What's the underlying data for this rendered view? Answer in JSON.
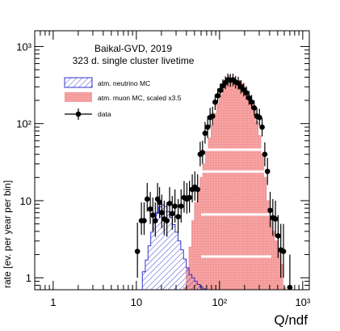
{
  "chart_data": {
    "type": "histogram",
    "annotation": {
      "line1": "Baikal-GVD, 2019",
      "line2": "323 d. single cluster livetime"
    },
    "xlabel": "Q/ndf",
    "ylabel": "rate [ev. per year per bin]",
    "x_scale": "log",
    "y_scale": "log",
    "xlim": [
      0.6,
      1200
    ],
    "ylim": [
      0.7,
      1600
    ],
    "x_ticks": [
      {
        "label": "1",
        "value": 1
      },
      {
        "label": "10",
        "value": 10
      },
      {
        "label": "10²",
        "value": 100
      },
      {
        "label": "10³",
        "value": 1000
      }
    ],
    "y_ticks": [
      {
        "label": "1",
        "value": 1
      },
      {
        "label": "10",
        "value": 10
      },
      {
        "label": "10²",
        "value": 100
      },
      {
        "label": "10³",
        "value": 1000
      }
    ],
    "legend": [
      {
        "label": "atm. neutrino MC",
        "style": "hatched",
        "color": "#3333cc"
      },
      {
        "label": "atm. muon MC, scaled x3.5",
        "style": "filled",
        "color": "#f09999"
      },
      {
        "label": "data",
        "style": "marker",
        "color": "#000000"
      }
    ],
    "series": [
      {
        "name": "atm. neutrino MC",
        "kind": "hist",
        "color": "#3333cc",
        "bins": [
          [
            11.8,
            12.8,
            1.2
          ],
          [
            12.8,
            13.8,
            1.7
          ],
          [
            13.8,
            14.9,
            2.6
          ],
          [
            14.9,
            16.0,
            3.9
          ],
          [
            16.0,
            17.3,
            5.5
          ],
          [
            17.3,
            18.6,
            7.0
          ],
          [
            18.6,
            20.1,
            8.3
          ],
          [
            20.1,
            21.7,
            8.8
          ],
          [
            21.7,
            23.4,
            8.4
          ],
          [
            23.4,
            25.2,
            7.2
          ],
          [
            25.2,
            27.2,
            6.1
          ],
          [
            27.2,
            29.3,
            4.9
          ],
          [
            29.3,
            31.7,
            3.9
          ],
          [
            31.7,
            34.2,
            3.0
          ],
          [
            34.2,
            36.9,
            2.3
          ],
          [
            36.9,
            39.8,
            1.75
          ],
          [
            39.8,
            43,
            1.35
          ],
          [
            43,
            46.4,
            1.1
          ],
          [
            46.4,
            50.0,
            1.0
          ],
          [
            50.0,
            54,
            0.9
          ],
          [
            54,
            58.3,
            0.82
          ],
          [
            58.3,
            63,
            0.76
          ],
          [
            63,
            68,
            0.72
          ]
        ]
      },
      {
        "name": "atm. muon MC, scaled x3.5",
        "kind": "hist",
        "color": "#f09999",
        "bins": [
          [
            36.9,
            39.8,
            0.75
          ],
          [
            39.8,
            43,
            1.35
          ],
          [
            43,
            46.4,
            2.5
          ],
          [
            46.4,
            50.0,
            5.5
          ],
          [
            50.0,
            54,
            9.5
          ],
          [
            54,
            58.3,
            14
          ],
          [
            58.3,
            63,
            20
          ],
          [
            63,
            68,
            30
          ],
          [
            68,
            73.4,
            45
          ],
          [
            73.4,
            79.3,
            65
          ],
          [
            79.3,
            85.5,
            95
          ],
          [
            85.5,
            92.3,
            135
          ],
          [
            92.3,
            99.6,
            180
          ],
          [
            99.6,
            107.5,
            230
          ],
          [
            107.5,
            116,
            280
          ],
          [
            116,
            125.3,
            330
          ],
          [
            125.3,
            135.3,
            420
          ],
          [
            135.3,
            146,
            380
          ],
          [
            146,
            157.6,
            370
          ],
          [
            157.6,
            170,
            350
          ],
          [
            170,
            183.5,
            360
          ],
          [
            183.5,
            198,
            330
          ],
          [
            198,
            213.7,
            290
          ],
          [
            213.7,
            230.7,
            240
          ],
          [
            230.7,
            249,
            190
          ],
          [
            249,
            268.8,
            150
          ],
          [
            268.8,
            290,
            105
          ],
          [
            290,
            313,
            70
          ],
          [
            313,
            337.8,
            40
          ],
          [
            337.8,
            364.6,
            20
          ],
          [
            364.6,
            393.5,
            10
          ],
          [
            393.5,
            424.7,
            6
          ],
          [
            424.7,
            458.4,
            4
          ],
          [
            458.4,
            494.8,
            3
          ],
          [
            494.8,
            534,
            2.2
          ],
          [
            534,
            576.4,
            1.5
          ],
          [
            576.4,
            622,
            0.75
          ]
        ]
      },
      {
        "name": "data",
        "kind": "points",
        "color": "#000000",
        "points": [
          [
            10.3,
            2.2,
            1.0,
            5.2
          ],
          [
            11.5,
            5.5,
            3.6,
            9.5
          ],
          [
            12.4,
            5.5,
            3.6,
            9.5
          ],
          [
            13.5,
            10.5,
            7.2,
            17
          ],
          [
            14.7,
            7.8,
            5.0,
            13
          ],
          [
            15.8,
            6.5,
            4.0,
            11
          ],
          [
            16.9,
            5.5,
            3.4,
            9.5
          ],
          [
            18.0,
            10.5,
            6.8,
            17
          ],
          [
            19.0,
            9.5,
            6.0,
            15
          ],
          [
            20.2,
            7.0,
            4.4,
            12
          ],
          [
            21.6,
            5.8,
            3.6,
            10
          ],
          [
            23.3,
            5.5,
            3.4,
            9.5
          ],
          [
            25.1,
            9.2,
            6.0,
            15
          ],
          [
            27.0,
            6.8,
            4.2,
            11.5
          ],
          [
            29.1,
            8.5,
            5.2,
            14
          ],
          [
            31.8,
            6.2,
            3.8,
            10.5
          ],
          [
            34.5,
            8.5,
            5.2,
            14
          ],
          [
            37.5,
            11,
            7.0,
            18
          ],
          [
            40.5,
            10.5,
            6.8,
            17
          ],
          [
            43.5,
            11,
            7.0,
            18
          ],
          [
            47,
            14,
            9.5,
            22
          ],
          [
            50.5,
            15,
            10,
            24
          ],
          [
            54.5,
            14,
            9.5,
            22
          ],
          [
            58.5,
            40,
            28,
            58
          ],
          [
            62.5,
            42,
            30,
            60
          ],
          [
            67,
            75,
            55,
            105
          ],
          [
            72,
            90,
            65,
            125
          ],
          [
            77,
            120,
            90,
            160
          ],
          [
            82.5,
            125,
            95,
            165
          ],
          [
            88.5,
            190,
            150,
            240
          ],
          [
            95,
            230,
            185,
            285
          ],
          [
            102,
            270,
            220,
            330
          ],
          [
            109.5,
            310,
            255,
            375
          ],
          [
            117.5,
            340,
            280,
            410
          ],
          [
            126,
            370,
            305,
            445
          ],
          [
            135,
            365,
            300,
            440
          ],
          [
            145,
            370,
            305,
            445
          ],
          [
            156,
            345,
            285,
            415
          ],
          [
            168,
            335,
            275,
            405
          ],
          [
            181,
            300,
            245,
            365
          ],
          [
            195,
            275,
            225,
            335
          ],
          [
            210,
            250,
            205,
            305
          ],
          [
            226,
            215,
            175,
            265
          ],
          [
            243,
            190,
            155,
            235
          ],
          [
            261,
            160,
            128,
            200
          ],
          [
            281,
            125,
            98,
            160
          ],
          [
            302,
            120,
            94,
            155
          ],
          [
            325,
            90,
            68,
            118
          ],
          [
            350,
            40,
            28,
            57
          ],
          [
            377,
            24,
            16,
            36
          ],
          [
            406,
            7.5,
            4.5,
            13
          ],
          [
            437,
            6.0,
            3.5,
            10.5
          ],
          [
            470,
            5.8,
            3.4,
            10
          ],
          [
            506,
            3.5,
            1.8,
            6.5
          ],
          [
            545,
            2.3,
            1.0,
            5.0
          ],
          [
            587,
            2.2,
            1.0,
            5.0
          ],
          [
            700,
            0.75,
            0.7,
            2.0
          ]
        ]
      }
    ]
  }
}
